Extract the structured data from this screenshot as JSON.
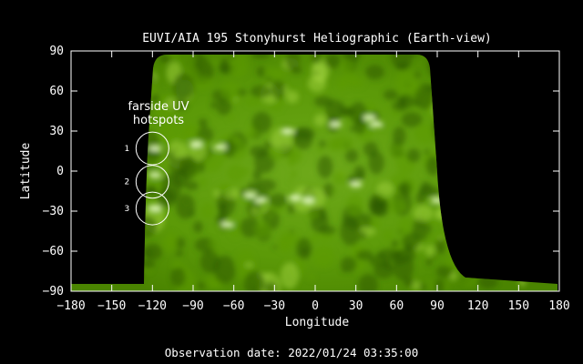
{
  "chart_data": {
    "type": "heatmap",
    "title": "EUVI/AIA 195 Stonyhurst Heliographic (Earth-view)",
    "xlabel": "Longitude",
    "ylabel": "Latitude",
    "xlim": [
      -180,
      180
    ],
    "ylim": [
      -90,
      90
    ],
    "xticks": [
      "-180",
      "-150",
      "-120",
      "-90",
      "-60",
      "-30",
      "0",
      "30",
      "60",
      "90",
      "120",
      "150",
      "180"
    ],
    "yticks": [
      "90",
      "60",
      "30",
      "0",
      "-30",
      "-60",
      "-90"
    ],
    "annotation": {
      "text_line1": "farside UV",
      "text_line2": "hotspots",
      "x": -118,
      "y": 48
    },
    "markers": [
      {
        "label": "1",
        "x": -120,
        "y": 17
      },
      {
        "label": "2",
        "x": -120,
        "y": -8
      },
      {
        "label": "3",
        "x": -120,
        "y": -28
      }
    ],
    "colormap": [
      "#000000",
      "#2e5a00",
      "#5c9a08",
      "#9ccf3a",
      "#ecffd0"
    ]
  },
  "footer": {
    "observation_date": "Observation date: 2022/01/24 03:35:00"
  }
}
